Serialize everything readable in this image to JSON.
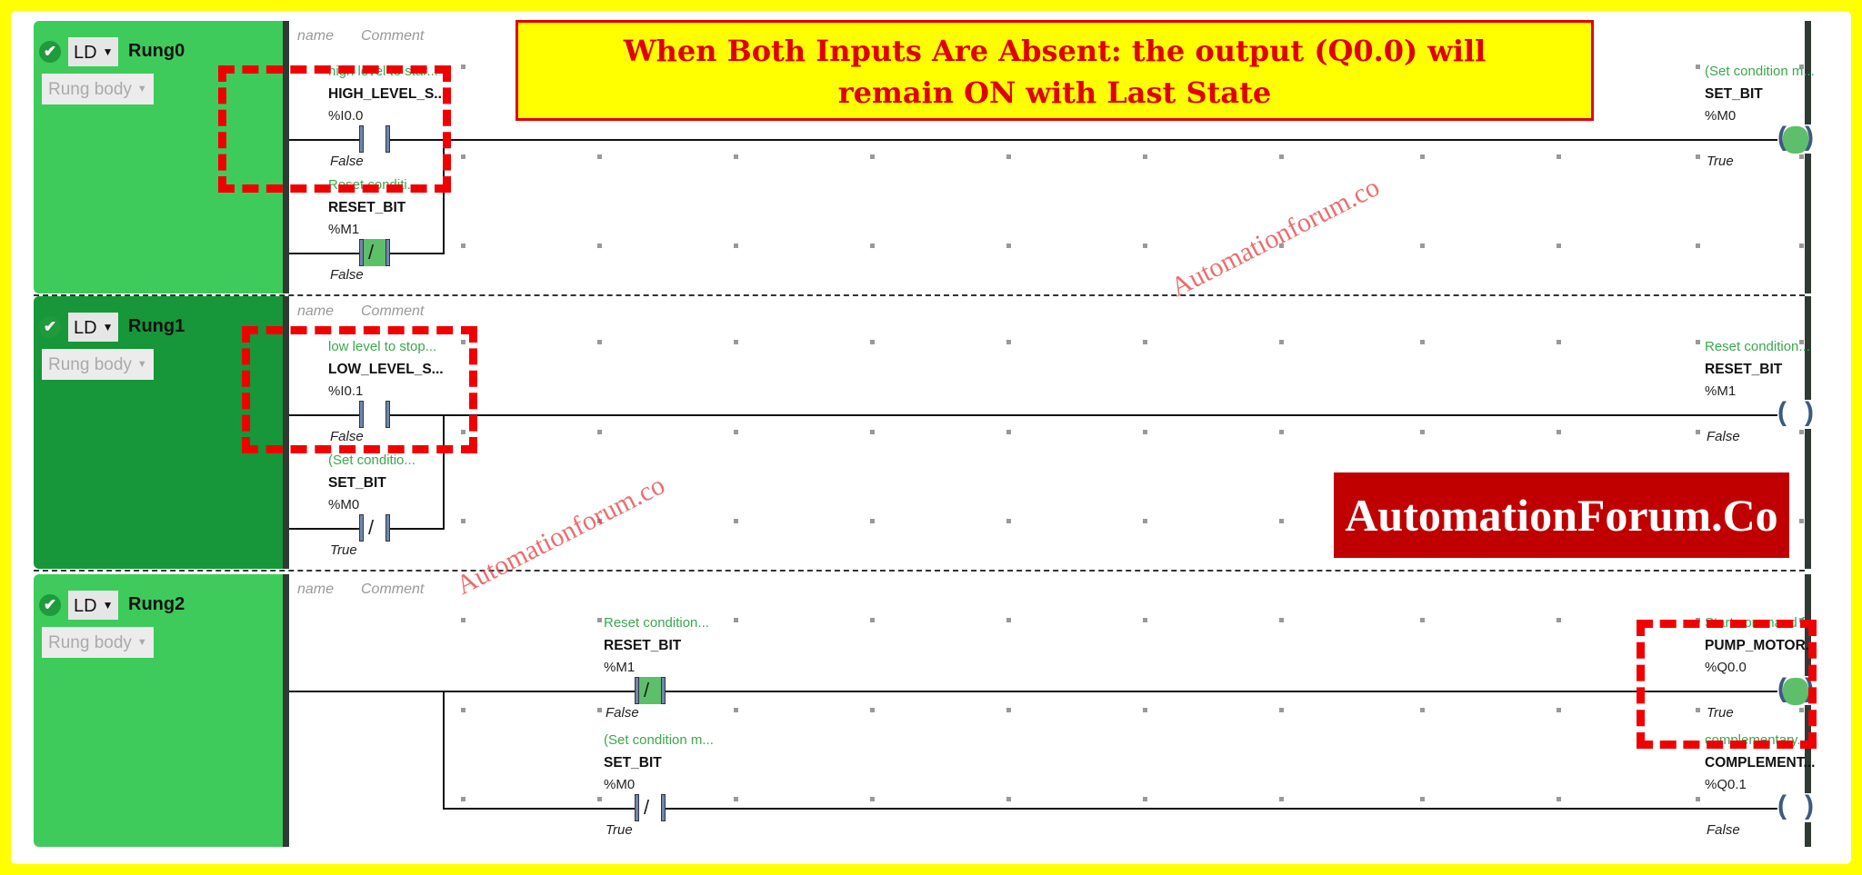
{
  "banner": {
    "line1": "When Both Inputs Are Absent: the output (Q0.0) will",
    "line2": "remain ON with Last State"
  },
  "logo": "AutomationForum.Co",
  "watermarks": [
    "Automationforum.co",
    "Automationforum.co"
  ],
  "colors": {
    "frame": "#ffff00",
    "rung_panel": "#3ecb5c",
    "rung_panel_selected": "#17963a",
    "highlight": "#f00000",
    "energized": "#5dbf6a",
    "comment_text": "#3aa84d"
  },
  "rungs": [
    {
      "title": "Rung0",
      "language": "LD",
      "section": "Rung body",
      "status_icon": "check-circle-icon",
      "header_name": "name",
      "header_comment": "Comment",
      "selected": false,
      "elements": [
        {
          "type": "contact-no",
          "comment": "high level to star...",
          "symbol": "HIGH_LEVEL_S...",
          "address": "%I0.0",
          "state": "False",
          "energized": false
        },
        {
          "type": "contact-nc",
          "comment": "Reset conditi...",
          "symbol": "RESET_BIT",
          "address": "%M1",
          "state": "False",
          "energized": true
        },
        {
          "type": "coil",
          "comment": "(Set condition m...",
          "symbol": "SET_BIT",
          "address": "%M0",
          "state": "True",
          "energized": true
        }
      ]
    },
    {
      "title": "Rung1",
      "language": "LD",
      "section": "Rung body",
      "status_icon": "check-circle-icon",
      "header_name": "name",
      "header_comment": "Comment",
      "selected": true,
      "elements": [
        {
          "type": "contact-no",
          "comment": "low level to stop...",
          "symbol": "LOW_LEVEL_S...",
          "address": "%I0.1",
          "state": "False",
          "energized": false
        },
        {
          "type": "contact-nc",
          "comment": "(Set conditio...",
          "symbol": "SET_BIT",
          "address": "%M0",
          "state": "True",
          "energized": false
        },
        {
          "type": "coil",
          "comment": "Reset condition...",
          "symbol": "RESET_BIT",
          "address": "%M1",
          "state": "False",
          "energized": false
        }
      ]
    },
    {
      "title": "Rung2",
      "language": "LD",
      "section": "Rung body",
      "status_icon": "check-circle-icon",
      "header_name": "name",
      "header_comment": "Comment",
      "selected": false,
      "elements": [
        {
          "type": "contact-nc",
          "comment": "Reset condition...",
          "symbol": "RESET_BIT",
          "address": "%M1",
          "state": "False",
          "energized": true
        },
        {
          "type": "contact-nc",
          "comment": "(Set condition m...",
          "symbol": "SET_BIT",
          "address": "%M0",
          "state": "True",
          "energized": false
        },
        {
          "type": "coil",
          "comment": "Start command f...",
          "symbol": "PUMP_MOTOR...",
          "address": "%Q0.0",
          "state": "True",
          "energized": true
        },
        {
          "type": "coil",
          "comment": "complementary...",
          "symbol": "COMPLEMENT...",
          "address": "%Q0.1",
          "state": "False",
          "energized": false
        }
      ]
    }
  ]
}
